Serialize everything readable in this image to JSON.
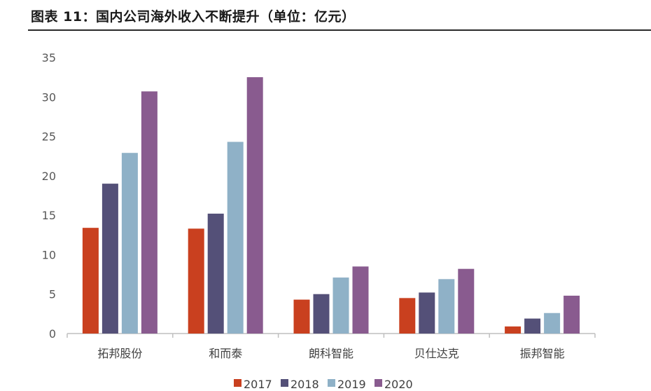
{
  "chart_data": {
    "type": "bar",
    "title": "图表 11：国内公司海外收入不断提升（单位：亿元）",
    "xlabel": "",
    "ylabel": "",
    "ylim": [
      0,
      35
    ],
    "yticks": [
      0,
      5,
      10,
      15,
      20,
      25,
      30,
      35
    ],
    "grid": false,
    "legend_position": "bottom",
    "categories": [
      "拓邦股份",
      "和而泰",
      "朗科智能",
      "贝仕达克",
      "振邦智能"
    ],
    "series": [
      {
        "name": "2017",
        "color": "#c9401f",
        "values": [
          13.4,
          13.3,
          4.3,
          4.5,
          0.9
        ]
      },
      {
        "name": "2018",
        "color": "#545078",
        "values": [
          19.0,
          15.2,
          5.0,
          5.2,
          1.9
        ]
      },
      {
        "name": "2019",
        "color": "#8fb1c7",
        "values": [
          22.9,
          24.3,
          7.1,
          6.9,
          2.6
        ]
      },
      {
        "name": "2020",
        "color": "#895b8f",
        "values": [
          30.7,
          32.5,
          8.5,
          8.2,
          4.8
        ]
      }
    ]
  }
}
